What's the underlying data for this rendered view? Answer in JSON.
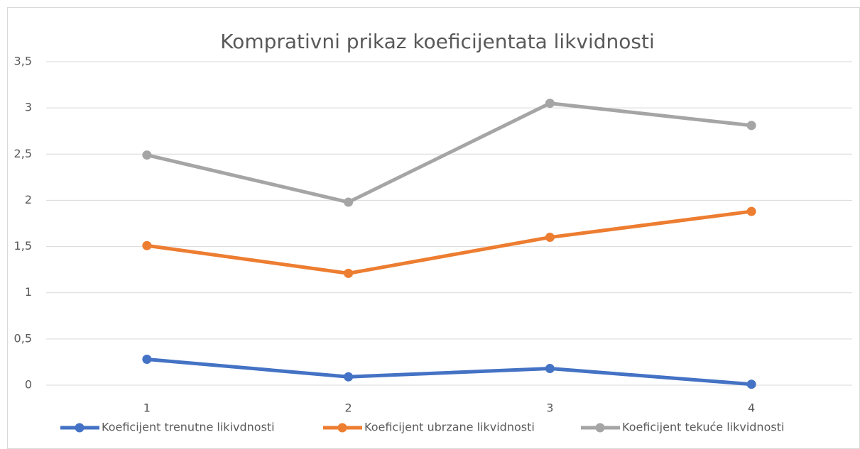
{
  "chart_data": {
    "type": "line",
    "title": "Komprativni prikaz koeficijentata likvidnosti",
    "categories": [
      "1",
      "2",
      "3",
      "4"
    ],
    "series": [
      {
        "name": "Koeficijent trenutne likivdnosti",
        "color": "#4472c4",
        "values": [
          0.28,
          0.09,
          0.18,
          0.01
        ]
      },
      {
        "name": "Koeficijent ubrzane likvidnosti",
        "color": "#ed7d31",
        "values": [
          1.51,
          1.21,
          1.6,
          1.88
        ]
      },
      {
        "name": "Koeficijent tekuće likvidnosti",
        "color": "#a5a5a5",
        "values": [
          2.49,
          1.98,
          3.05,
          2.81
        ]
      }
    ],
    "ylim": [
      0,
      3.5
    ],
    "yticks": [
      0,
      {
        "value": 0.5,
        "label": "0,5"
      },
      1,
      {
        "value": 1.5,
        "label": "1,5"
      },
      2,
      {
        "value": 2.5,
        "label": "2,5"
      },
      3,
      {
        "value": 3.5,
        "label": "3,5"
      }
    ],
    "grid": true,
    "legend": "bottom"
  }
}
